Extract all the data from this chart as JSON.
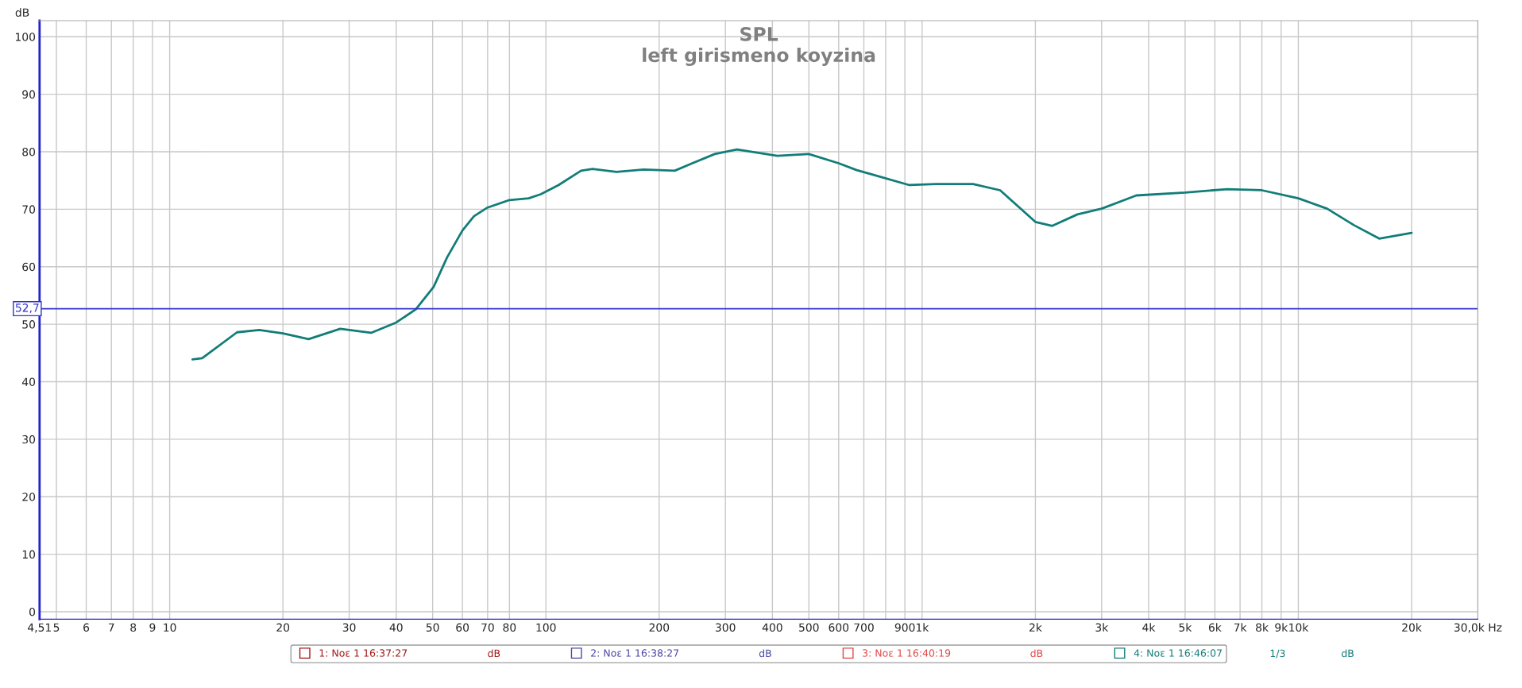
{
  "chart_data": {
    "type": "line",
    "title": "SPL",
    "subtitle": "left girismeno koyzina",
    "ylabel": "dB",
    "log": "x",
    "grid": true,
    "legend": "bottom",
    "marker": "none",
    "line_style": "solid",
    "xlim": [
      4.51,
      30000
    ],
    "ylim": [
      -1.3,
      102.8
    ],
    "xticks": [
      {
        "value": 4.51,
        "label": "4,51"
      },
      5,
      6,
      7,
      8,
      9,
      10,
      20,
      30,
      40,
      50,
      60,
      70,
      80,
      100,
      200,
      300,
      400,
      500,
      600,
      700,
      {
        "value": 800,
        "label": null
      },
      900,
      {
        "value": 1000,
        "label": "1k"
      },
      {
        "value": 2000,
        "label": "2k"
      },
      {
        "value": 3000,
        "label": "3k"
      },
      {
        "value": 4000,
        "label": "4k"
      },
      {
        "value": 5000,
        "label": "5k"
      },
      {
        "value": 6000,
        "label": "6k"
      },
      {
        "value": 7000,
        "label": "7k"
      },
      {
        "value": 8000,
        "label": "8k"
      },
      {
        "value": 9000,
        "label": "9k"
      },
      {
        "value": 10000,
        "label": "10k"
      },
      {
        "value": 20000,
        "label": "20k"
      },
      {
        "value": 30000,
        "label": "30,0k Hz"
      }
    ],
    "yticks": [
      0,
      10,
      20,
      30,
      40,
      50,
      60,
      70,
      80,
      90,
      100
    ],
    "ref_lines": [
      {
        "axis": "y",
        "value": 52.7,
        "label": "52,7",
        "color": "#3333cc"
      }
    ],
    "annotations": [
      "dB",
      "dB",
      "dB",
      "1/3",
      "dB"
    ],
    "series": [
      {
        "name": "1: Νοε 1 16:37:27",
        "color": "#a01818"
      },
      {
        "name": "2: Νοε 1 16:38:27",
        "color": "#4848a8"
      },
      {
        "name": "3: Νοε 1 16:40:19",
        "color": "#e04848"
      },
      {
        "name": "4: Νοε 1 16:46:07",
        "color": "#127d78",
        "x": [
          11.5,
          12.2,
          15.1,
          17.3,
          20,
          23.4,
          28.4,
          34.3,
          40,
          45.1,
          50.3,
          54.6,
          60,
          64.4,
          70,
          80,
          90,
          96.9,
          108,
          124,
          133,
          154,
          182,
          220,
          245,
          281,
          322,
          412,
          500,
          600,
          670,
          740,
          925,
          1092,
          1365,
          1612,
          2000,
          2218,
          2586,
          3000,
          3710,
          5000,
          6467,
          8000,
          10000,
          11920,
          14080,
          16400,
          20000
        ],
        "values": [
          43.9,
          44.1,
          48.6,
          49.0,
          48.4,
          47.4,
          49.2,
          48.5,
          50.3,
          52.6,
          56.5,
          61.6,
          66.3,
          68.8,
          70.3,
          71.6,
          71.9,
          72.6,
          74.2,
          76.7,
          77.0,
          76.5,
          76.9,
          76.7,
          78.0,
          79.6,
          80.4,
          79.3,
          79.6,
          78.0,
          76.8,
          76.0,
          74.2,
          74.4,
          74.4,
          73.3,
          67.8,
          67.1,
          69.1,
          70.1,
          72.4,
          72.9,
          73.5,
          73.3,
          71.9,
          70.1,
          67.2,
          64.9,
          65.9
        ]
      }
    ]
  }
}
